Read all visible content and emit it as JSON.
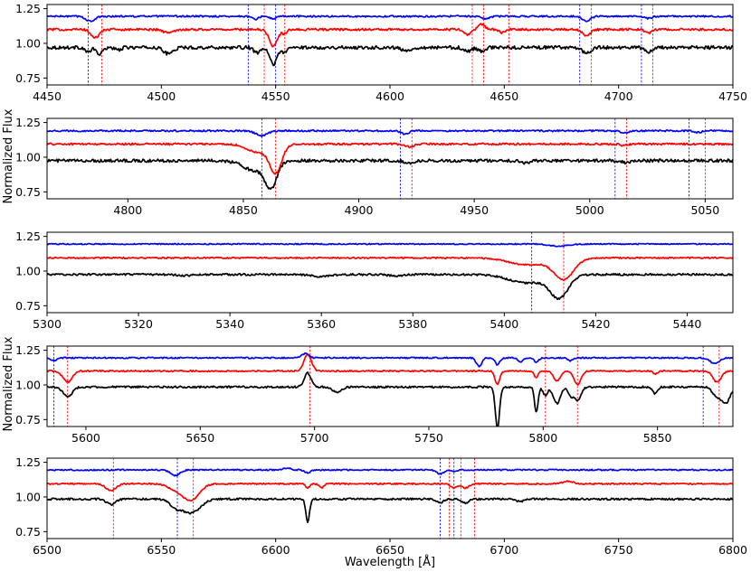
{
  "figure": {
    "colors": {
      "black": "#000000",
      "red": "#ff0000",
      "blue": "#0000ff"
    },
    "ylabels": [
      "Normalized Flux",
      "Normalized Flux"
    ],
    "xlabel": "Wavelength [Å]"
  },
  "chart_data": [
    {
      "type": "line",
      "xlim": [
        4450,
        4750
      ],
      "ylim": [
        0.7,
        1.28
      ],
      "xticks": [
        "4450",
        "4500",
        "4550",
        "4600",
        "4650",
        "4700",
        "4750"
      ],
      "yticks": [
        "0.75",
        "1.00",
        "1.25"
      ],
      "series": [
        {
          "color": "#000000",
          "base": 0.97,
          "noise": 0.012,
          "lines": [
            [
              4468,
              0.035,
              1.2
            ],
            [
              4473,
              0.05,
              1.3
            ],
            [
              4481,
              0.02,
              1.2
            ],
            [
              4503,
              0.045,
              2.0
            ],
            [
              4542,
              0.04,
              1.5
            ],
            [
              4549,
              0.12,
              1.6
            ],
            [
              4554,
              0.04,
              1.0
            ],
            [
              4607,
              0.025,
              2.0
            ],
            [
              4634,
              0.03,
              1.5
            ],
            [
              4640,
              0.025,
              1.5
            ],
            [
              4686,
              0.04,
              1.8
            ],
            [
              4713,
              0.035,
              1.5
            ]
          ]
        },
        {
          "color": "#ff0000",
          "base": 1.1,
          "noise": 0.008,
          "lines": [
            [
              4471,
              0.06,
              1.8
            ],
            [
              4503,
              0.025,
              2.0
            ],
            [
              4549,
              0.12,
              1.8
            ],
            [
              4554,
              0.03,
              1.0
            ],
            [
              4634,
              0.04,
              1.5
            ],
            [
              4640,
              -0.04,
              1.4
            ],
            [
              4649,
              0.025,
              1.2
            ],
            [
              4686,
              0.05,
              1.6
            ],
            [
              4713,
              0.025,
              1.5
            ]
          ]
        },
        {
          "color": "#0000ff",
          "base": 1.195,
          "noise": 0.006,
          "lines": [
            [
              4469,
              0.035,
              2.0
            ],
            [
              4541,
              0.02,
              1.5
            ],
            [
              4549,
              0.02,
              1.3
            ],
            [
              4642,
              0.02,
              1.5
            ],
            [
              4686,
              0.035,
              1.6
            ],
            [
              4713,
              0.015,
              1.5
            ]
          ]
        }
      ],
      "markers": [
        {
          "color": "#ff0000",
          "x": [
            4474,
            4545,
            4554,
            4636,
            4641,
            4652,
            4688,
            4715
          ]
        },
        {
          "color": "#0000ff",
          "x": [
            4468,
            4538,
            4550,
            4683,
            4710
          ]
        }
      ]
    },
    {
      "type": "line",
      "xlim": [
        4765,
        5062
      ],
      "ylim": [
        0.7,
        1.28
      ],
      "xticks": [
        "4800",
        "4850",
        "4900",
        "4950",
        "5000",
        "5050"
      ],
      "yticks": [
        "0.75",
        "1.00",
        "1.25"
      ],
      "series": [
        {
          "color": "#000000",
          "base": 0.975,
          "noise": 0.011,
          "lines": [
            [
              4862,
              0.18,
              2.5
            ],
            [
              4855,
              0.07,
              5
            ],
            [
              4922,
              0.02,
              1.8
            ],
            [
              4972,
              0.015,
              2.0
            ],
            [
              5016,
              0.015,
              1.8
            ]
          ]
        },
        {
          "color": "#ff0000",
          "base": 1.095,
          "noise": 0.007,
          "lines": [
            [
              4864,
              0.2,
              2.6
            ],
            [
              4856,
              0.06,
              4.5
            ],
            [
              4922,
              0.02,
              1.8
            ],
            [
              5015,
              0.012,
              1.5
            ]
          ]
        },
        {
          "color": "#0000ff",
          "base": 1.19,
          "noise": 0.006,
          "lines": [
            [
              4858,
              0.035,
              2.5
            ],
            [
              4920,
              0.025,
              1.6
            ],
            [
              5015,
              0.015,
              1.5
            ],
            [
              5047,
              0.012,
              1.5
            ]
          ]
        }
      ],
      "markers": [
        {
          "color": "#ff0000",
          "x": [
            4864,
            4923,
            5016,
            5050
          ]
        },
        {
          "color": "#0000ff",
          "x": [
            4858,
            4918,
            5011,
            5043
          ]
        }
      ]
    },
    {
      "type": "line",
      "xlim": [
        5300,
        5450
      ],
      "ylim": [
        0.7,
        1.28
      ],
      "xticks": [
        "5300",
        "5320",
        "5340",
        "5360",
        "5380",
        "5400",
        "5420",
        "5440"
      ],
      "yticks": [
        "0.75",
        "1.00",
        "1.25"
      ],
      "series": [
        {
          "color": "#000000",
          "base": 0.975,
          "noise": 0.007,
          "lines": [
            [
              5412,
              0.16,
              2.0
            ],
            [
              5405,
              0.06,
              4.0
            ],
            [
              5360,
              0.015,
              2.0
            ],
            [
              5376,
              0.01,
              1.5
            ],
            [
              5330,
              0.008,
              1.5
            ]
          ]
        },
        {
          "color": "#ff0000",
          "base": 1.095,
          "noise": 0.005,
          "lines": [
            [
              5413,
              0.15,
              2.2
            ],
            [
              5405,
              0.05,
              4.0
            ]
          ]
        },
        {
          "color": "#0000ff",
          "base": 1.195,
          "noise": 0.004,
          "lines": [
            [
              5412,
              0.015,
              2.0
            ]
          ]
        }
      ],
      "markers": [
        {
          "color": "#ff0000",
          "x": [
            5413
          ]
        },
        {
          "color": "#0000ff",
          "x": [
            5406
          ]
        }
      ]
    },
    {
      "type": "line",
      "xlim": [
        5583,
        5883
      ],
      "ylim": [
        0.7,
        1.28
      ],
      "xticks": [
        "5600",
        "5650",
        "5700",
        "5750",
        "5800",
        "5850"
      ],
      "yticks": [
        "0.75",
        "1.00",
        "1.25"
      ],
      "series": [
        {
          "color": "#000000",
          "base": 0.985,
          "noise": 0.007,
          "lines": [
            [
              5592,
              0.07,
              2.0
            ],
            [
              5697,
              -0.1,
              1.5
            ],
            [
              5710,
              0.04,
              1.8
            ],
            [
              5780,
              0.3,
              0.9
            ],
            [
              5797,
              0.18,
              0.8
            ],
            [
              5801,
              0.06,
              1.0
            ],
            [
              5806,
              0.12,
              1.5
            ],
            [
              5812,
              0.06,
              1.0
            ],
            [
              5815,
              0.1,
              1.5
            ],
            [
              5849,
              0.05,
              1.0
            ],
            [
              5876,
              0.07,
              1.8
            ],
            [
              5880,
              0.11,
              1.8
            ]
          ]
        },
        {
          "color": "#ff0000",
          "base": 1.1,
          "noise": 0.005,
          "lines": [
            [
              5592,
              0.08,
              2.0
            ],
            [
              5697,
              -0.12,
              1.6
            ],
            [
              5780,
              0.1,
              1.0
            ],
            [
              5797,
              0.05,
              0.8
            ],
            [
              5806,
              0.07,
              1.5
            ],
            [
              5815,
              0.1,
              1.5
            ],
            [
              5849,
              0.02,
              1.0
            ],
            [
              5876,
              0.08,
              1.8
            ]
          ]
        },
        {
          "color": "#0000ff",
          "base": 1.195,
          "noise": 0.005,
          "lines": [
            [
              5586,
              0.02,
              1.5
            ],
            [
              5696,
              -0.03,
              1.5
            ],
            [
              5772,
              0.06,
              1.2
            ],
            [
              5780,
              0.05,
              1.0
            ],
            [
              5790,
              0.03,
              1.0
            ],
            [
              5797,
              0.03,
              1.0
            ],
            [
              5812,
              0.02,
              1.0
            ],
            [
              5875,
              0.04,
              2.0
            ]
          ]
        }
      ],
      "markers": [
        {
          "color": "#ff0000",
          "x": [
            5592,
            5698,
            5801,
            5815,
            5877
          ]
        },
        {
          "color": "#0000ff",
          "x": [
            5586,
            5870
          ]
        }
      ]
    },
    {
      "type": "line",
      "xlim": [
        6500,
        6800
      ],
      "ylim": [
        0.7,
        1.28
      ],
      "xticks": [
        "6500",
        "6550",
        "6600",
        "6650",
        "6700",
        "6750",
        "6800"
      ],
      "yticks": [
        "0.75",
        "1.00",
        "1.25"
      ],
      "series": [
        {
          "color": "#000000",
          "base": 0.985,
          "noise": 0.007,
          "lines": [
            [
              6528,
              0.04,
              2.0
            ],
            [
              6563,
              0.1,
              4.0
            ],
            [
              6556,
              0.05,
              2.5
            ],
            [
              6614,
              0.17,
              0.8
            ],
            [
              6672,
              0.025,
              1.5
            ],
            [
              6683,
              0.03,
              1.5
            ],
            [
              6707,
              0.02,
              1.5
            ]
          ]
        },
        {
          "color": "#ff0000",
          "base": 1.095,
          "noise": 0.005,
          "lines": [
            [
              6528,
              0.05,
              2.2
            ],
            [
              6563,
              0.12,
              3.5
            ],
            [
              6556,
              0.04,
              3.0
            ],
            [
              6614,
              0.03,
              0.8
            ],
            [
              6620,
              0.03,
              1.0
            ],
            [
              6678,
              0.03,
              1.5
            ],
            [
              6683,
              0.03,
              1.5
            ],
            [
              6728,
              -0.02,
              2.0
            ]
          ]
        },
        {
          "color": "#0000ff",
          "base": 1.195,
          "noise": 0.005,
          "lines": [
            [
              6556,
              0.04,
              2.0
            ],
            [
              6605,
              -0.015,
              1.5
            ],
            [
              6614,
              0.02,
              1.2
            ],
            [
              6672,
              0.03,
              1.5
            ],
            [
              6678,
              0.01,
              1.2
            ]
          ]
        }
      ],
      "markers": [
        {
          "color": "#ff0000",
          "x": [
            6529,
            6564,
            6676,
            6681,
            6687
          ]
        },
        {
          "color": "#0000ff",
          "x": [
            6557,
            6672,
            6678
          ]
        }
      ]
    }
  ]
}
